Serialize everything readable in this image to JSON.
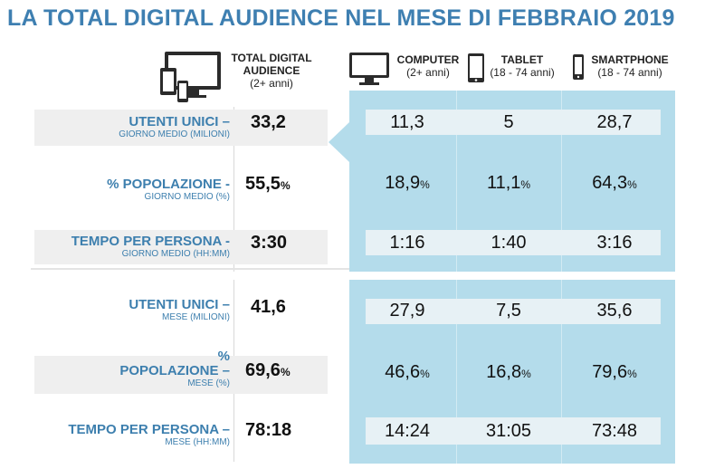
{
  "title": "LA TOTAL DIGITAL AUDIENCE NEL MESE DI FEBBRAIO 2019",
  "columns": [
    {
      "key": "total",
      "label_line1": "TOTAL DIGITAL",
      "label_line2": "AUDIENCE",
      "sub": "(2+ anni)",
      "icon": "multi-device-icon"
    },
    {
      "key": "computer",
      "label": "COMPUTER",
      "sub": "(2+ anni)",
      "icon": "monitor-icon"
    },
    {
      "key": "tablet",
      "label": "TABLET",
      "sub": "(18 - 74 anni)",
      "icon": "tablet-icon"
    },
    {
      "key": "smartphone",
      "label": "SMARTPHONE",
      "sub": "(18 - 74 anni)",
      "icon": "smartphone-icon"
    }
  ],
  "rows": [
    {
      "main": "UTENTI UNICI –",
      "sub": "GIORNO MEDIO (MILIONI)",
      "total": "33,2",
      "total_pct": "",
      "values": [
        "11,3",
        "5",
        "28,7"
      ],
      "pcts": [
        "",
        "",
        ""
      ]
    },
    {
      "main": "% POPOLAZIONE -",
      "sub": "GIORNO MEDIO (%)",
      "total": "55,5",
      "total_pct": "%",
      "values": [
        "18,9",
        "11,1",
        "64,3"
      ],
      "pcts": [
        "%",
        "%",
        "%"
      ]
    },
    {
      "main": "TEMPO PER PERSONA -",
      "sub": "GIORNO MEDIO (HH:MM)",
      "total": "3:30",
      "total_pct": "",
      "values": [
        "1:16",
        "1:40",
        "3:16"
      ],
      "pcts": [
        "",
        "",
        ""
      ]
    },
    {
      "main": "UTENTI UNICI –",
      "sub": "MESE (MILIONI)",
      "total": "41,6",
      "total_pct": "",
      "values": [
        "27,9",
        "7,5",
        "35,6"
      ],
      "pcts": [
        "",
        "",
        ""
      ]
    },
    {
      "main_a": "%",
      "main": "POPOLAZIONE –",
      "sub": "MESE (%)",
      "total": "69,6",
      "total_pct": "%",
      "values": [
        "46,6",
        "16,8",
        "79,6"
      ],
      "pcts": [
        "%",
        "%",
        "%"
      ]
    },
    {
      "main": "TEMPO PER PERSONA –",
      "sub": "MESE (HH:MM)",
      "total": "78:18",
      "total_pct": "",
      "values": [
        "14:24",
        "31:05",
        "73:48"
      ],
      "pcts": [
        "",
        "",
        ""
      ]
    }
  ],
  "chart_data": {
    "type": "table",
    "title": "LA TOTAL DIGITAL AUDIENCE NEL MESE DI FEBBRAIO 2019",
    "columns": [
      "TOTAL DIGITAL AUDIENCE (2+ anni)",
      "COMPUTER (2+ anni)",
      "TABLET (18 - 74 anni)",
      "SMARTPHONE (18 - 74 anni)"
    ],
    "rows": [
      {
        "metric": "UTENTI UNICI – GIORNO MEDIO (MILIONI)",
        "values": [
          33.2,
          11.3,
          5,
          28.7
        ]
      },
      {
        "metric": "% POPOLAZIONE - GIORNO MEDIO (%)",
        "values": [
          55.5,
          18.9,
          11.1,
          64.3
        ]
      },
      {
        "metric": "TEMPO PER PERSONA - GIORNO MEDIO (HH:MM)",
        "values": [
          "3:30",
          "1:16",
          "1:40",
          "3:16"
        ]
      },
      {
        "metric": "UTENTI UNICI – MESE (MILIONI)",
        "values": [
          41.6,
          27.9,
          7.5,
          35.6
        ]
      },
      {
        "metric": "% POPOLAZIONE – MESE (%)",
        "values": [
          69.6,
          46.6,
          16.8,
          79.6
        ]
      },
      {
        "metric": "TEMPO PER PERSONA – MESE (HH:MM)",
        "values": [
          "78:18",
          "14:24",
          "31:05",
          "73:48"
        ]
      }
    ]
  }
}
